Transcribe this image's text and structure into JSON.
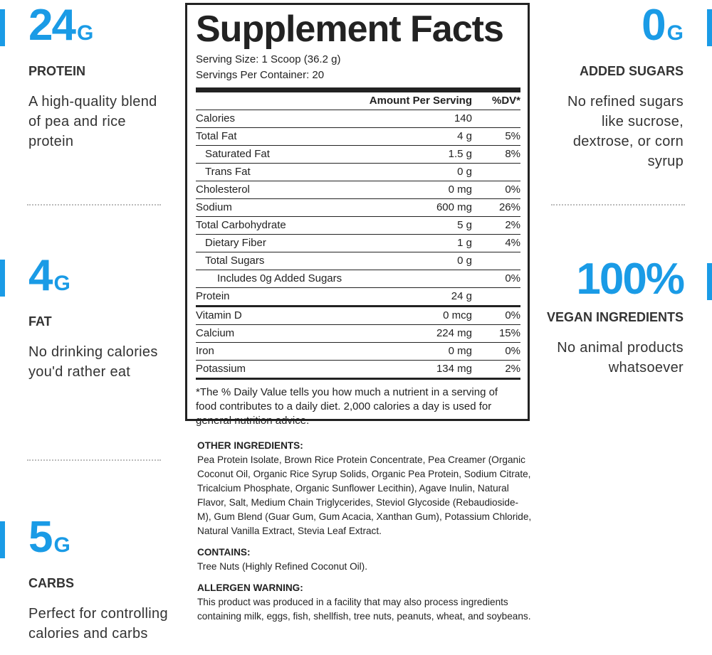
{
  "left_features": [
    {
      "value": "24",
      "unit": "G",
      "label": "PROTEIN",
      "description": "A high-quality blend of pea and rice protein"
    },
    {
      "value": "4",
      "unit": "G",
      "label": "FAT",
      "description": "No drinking calories you'd rather eat"
    },
    {
      "value": "5",
      "unit": "G",
      "label": "CARBS",
      "description": "Perfect for controlling calories and carbs"
    }
  ],
  "right_features": [
    {
      "value": "0",
      "unit": "G",
      "label": "ADDED SUGARS",
      "description": "No refined sugars like sucrose, dextrose, or corn syrup"
    },
    {
      "value": "100%",
      "label": "VEGAN INGREDIENTS",
      "description": "No animal products whatsoever"
    }
  ],
  "facts": {
    "title": "Supplement Facts",
    "serving_size": "Serving Size: 1 Scoop (36.2 g)",
    "servings_per_container": "Servings Per Container: 20",
    "header": {
      "amount": "Amount Per Serving",
      "dv": "%DV*"
    },
    "rows": [
      {
        "name": "Calories",
        "amount": "140"
      },
      {
        "name": "Total Fat",
        "amount": "4 g",
        "dv": "5%",
        "children": [
          {
            "name": "Saturated Fat",
            "amount": "1.5 g",
            "dv": "8%"
          },
          {
            "name": "Trans Fat",
            "amount": "0 g"
          }
        ]
      },
      {
        "name": "Cholesterol",
        "amount": "0 mg",
        "dv": "0%"
      },
      {
        "name": "Sodium",
        "amount": "600 mg",
        "dv": "26%"
      },
      {
        "name": "Total Carbohydrate",
        "amount": "5 g",
        "dv": "2%",
        "children": [
          {
            "name": "Dietary Fiber",
            "amount": "1 g",
            "dv": "4%"
          },
          {
            "name": "Total Sugars",
            "amount": "0 g",
            "children": [
              {
                "name": "Includes 0g Added Sugars",
                "dv": "0%"
              }
            ]
          }
        ]
      },
      {
        "name": "Protein",
        "amount": "24 g"
      }
    ],
    "vitamins": [
      {
        "name": "Vitamin D",
        "amount": "0 mcg",
        "dv": "0%"
      },
      {
        "name": "Calcium",
        "amount": "224 mg",
        "dv": "15%"
      },
      {
        "name": "Iron",
        "amount": "0 mg",
        "dv": "0%"
      },
      {
        "name": "Potassium",
        "amount": "134 mg",
        "dv": "2%"
      }
    ],
    "footnote": "*The % Daily Value tells you how much a nutrient in a serving of food contributes to a daily diet. 2,000 calories a day is used for general nutrition advice."
  },
  "sections": [
    {
      "heading": "OTHER INGREDIENTS:",
      "text": "Pea Protein Isolate, Brown Rice Protein Concentrate, Pea Creamer (Organic Coconut Oil, Organic Rice Syrup Solids, Organic Pea Protein, Sodium Citrate, Tricalcium Phosphate, Organic Sunflower Lecithin), Agave Inulin, Natural Flavor, Salt, Medium Chain Triglycerides, Steviol Glycoside (Rebaudioside-M), Gum Blend (Guar Gum, Gum Acacia, Xanthan Gum), Potassium Chloride, Natural Vanilla Extract, Stevia Leaf Extract."
    },
    {
      "heading": "CONTAINS:",
      "text": "Tree Nuts (Highly Refined Coconut Oil)."
    },
    {
      "heading": "ALLERGEN WARNING:",
      "text": "This product was produced in a facility that may also process ingredients containing milk, eggs, fish, shellfish, tree nuts, peanuts, wheat, and soybeans."
    }
  ]
}
